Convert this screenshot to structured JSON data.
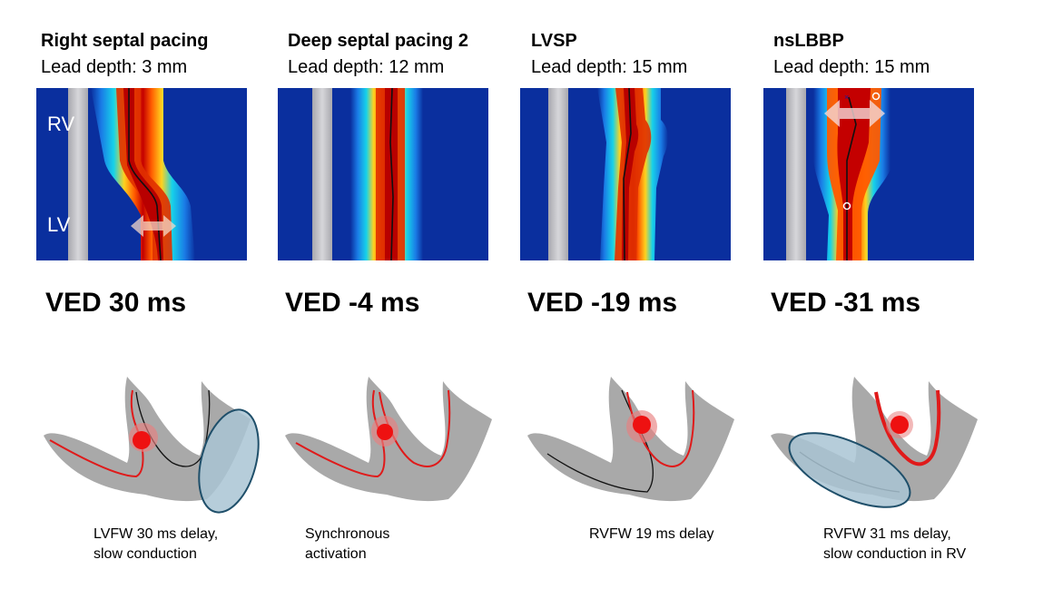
{
  "panels": [
    {
      "title": "Right septal pacing",
      "depth": "Lead depth: 3 mm",
      "ved": "VED 30 ms",
      "caption_line1": "LVFW 30 ms delay,",
      "caption_line2": "slow conduction",
      "map_labels": {
        "top": "RV",
        "bottom": "LV"
      }
    },
    {
      "title": "Deep septal pacing 2",
      "depth": "Lead depth: 12 mm",
      "ved": "VED -4 ms",
      "caption_line1": "Synchronous",
      "caption_line2": "activation"
    },
    {
      "title": "LVSP",
      "depth": "Lead depth: 15 mm",
      "ved": "VED -19 ms",
      "caption_line1": "RVFW 19 ms delay",
      "caption_line2": ""
    },
    {
      "title": "nsLBBP",
      "depth": "Lead depth: 15 mm",
      "ved": "VED -31 ms",
      "caption_line1": "RVFW 31 ms delay,",
      "caption_line2": "slow conduction in RV"
    }
  ],
  "colors": {
    "map_background": "#0a2f9e",
    "activation_hot": "#c80000",
    "activation_warm": "#ff5a00",
    "activation_yellow": "#ffd200",
    "activation_cyan": "#12c8e6",
    "lead_band": "#c8c8cc",
    "heart_tissue": "#a9a9a9",
    "conduction_line": "#e01a1a",
    "pacing_dot": "#ee1111",
    "delay_ellipse": "#a9c4d4",
    "delay_ellipse_stroke": "#1f4f6a"
  }
}
